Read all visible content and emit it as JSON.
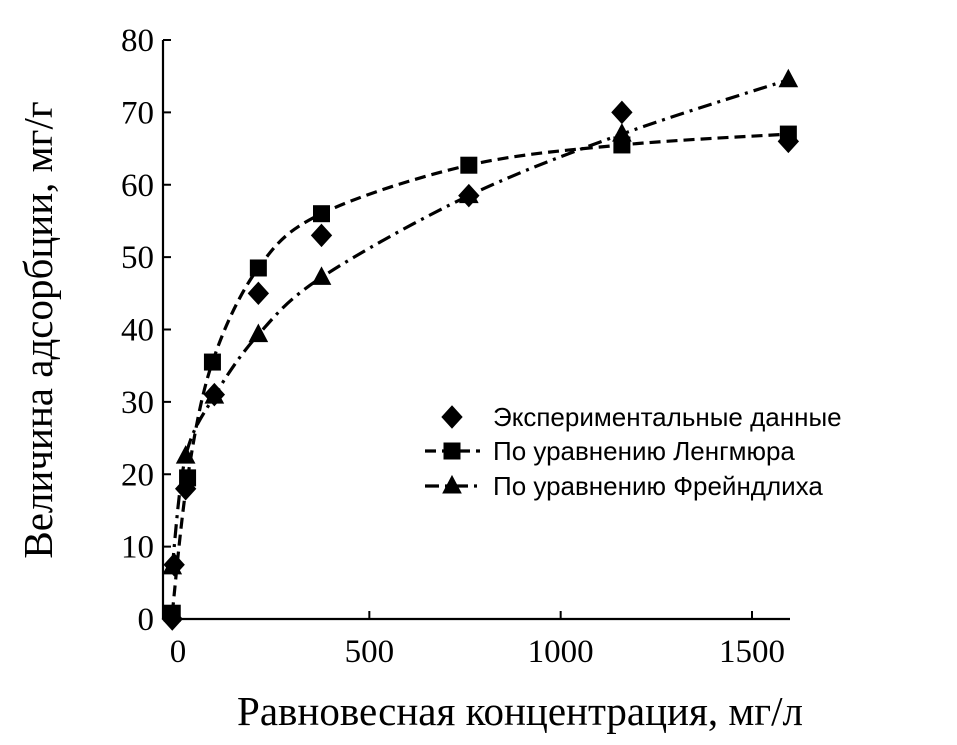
{
  "chart_data": {
    "type": "line",
    "title": "",
    "xlabel": "Равновесная концентрация, мг/л",
    "ylabel": "Величина адсорбции, мг/г",
    "xlim": [
      -20,
      1620
    ],
    "ylim": [
      0,
      80
    ],
    "xticks": [
      0,
      500,
      1000,
      1500
    ],
    "yticks": [
      0,
      10,
      20,
      30,
      40,
      50,
      60,
      70,
      80
    ],
    "grid": false,
    "legend_position": "right-middle",
    "series": [
      {
        "name": "Экспериментальные данные",
        "marker": "diamond",
        "line": "none",
        "x": [
          -15,
          -10,
          20,
          95,
          210,
          375,
          760,
          1160,
          1595
        ],
        "y": [
          0,
          7.5,
          18,
          31,
          45,
          53,
          58.5,
          70,
          66
        ]
      },
      {
        "name": "По уравнению Ленгмюра",
        "marker": "square",
        "line": "dashed",
        "x": [
          -15,
          25,
          90,
          210,
          375,
          760,
          1160,
          1595
        ],
        "y": [
          0.8,
          19.5,
          35.5,
          48.5,
          56,
          62.7,
          65.5,
          67
        ]
      },
      {
        "name": "По уравнению Фрейндлиха",
        "marker": "triangle",
        "line": "dashdot",
        "x": [
          -15,
          20,
          95,
          210,
          375,
          760,
          1160,
          1595
        ],
        "y": [
          7.2,
          22.5,
          30.8,
          39.3,
          47.2,
          58.5,
          67,
          74.5
        ]
      }
    ]
  }
}
